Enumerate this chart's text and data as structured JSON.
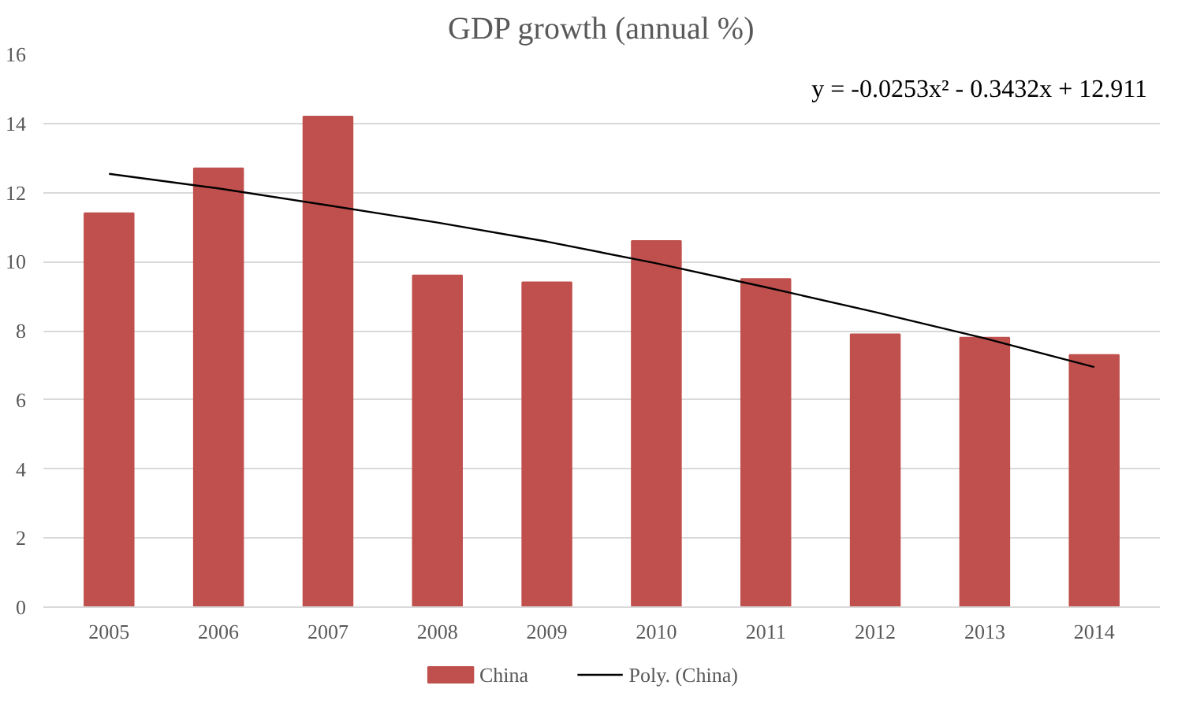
{
  "chart_data": {
    "type": "bar",
    "title": "GDP growth (annual %)",
    "categories": [
      "2005",
      "2006",
      "2007",
      "2008",
      "2009",
      "2010",
      "2011",
      "2012",
      "2013",
      "2014"
    ],
    "series": [
      {
        "name": "China",
        "color": "#c0504d",
        "values": [
          11.4,
          12.7,
          14.2,
          9.6,
          9.4,
          10.6,
          9.5,
          7.9,
          7.8,
          7.3
        ]
      },
      {
        "name": "Poly. (China)",
        "type": "line",
        "color": "#000000",
        "values": [
          12.54,
          12.12,
          11.63,
          11.13,
          10.58,
          9.95,
          9.26,
          8.54,
          7.78,
          6.95
        ]
      }
    ],
    "ylim": [
      0,
      16
    ],
    "yticks": [
      0,
      2,
      4,
      6,
      8,
      10,
      12,
      14,
      16
    ],
    "grid": "y",
    "legend": "bottom",
    "annotations": [
      "y = -0.0253x² - 0.3432x + 12.911"
    ]
  }
}
